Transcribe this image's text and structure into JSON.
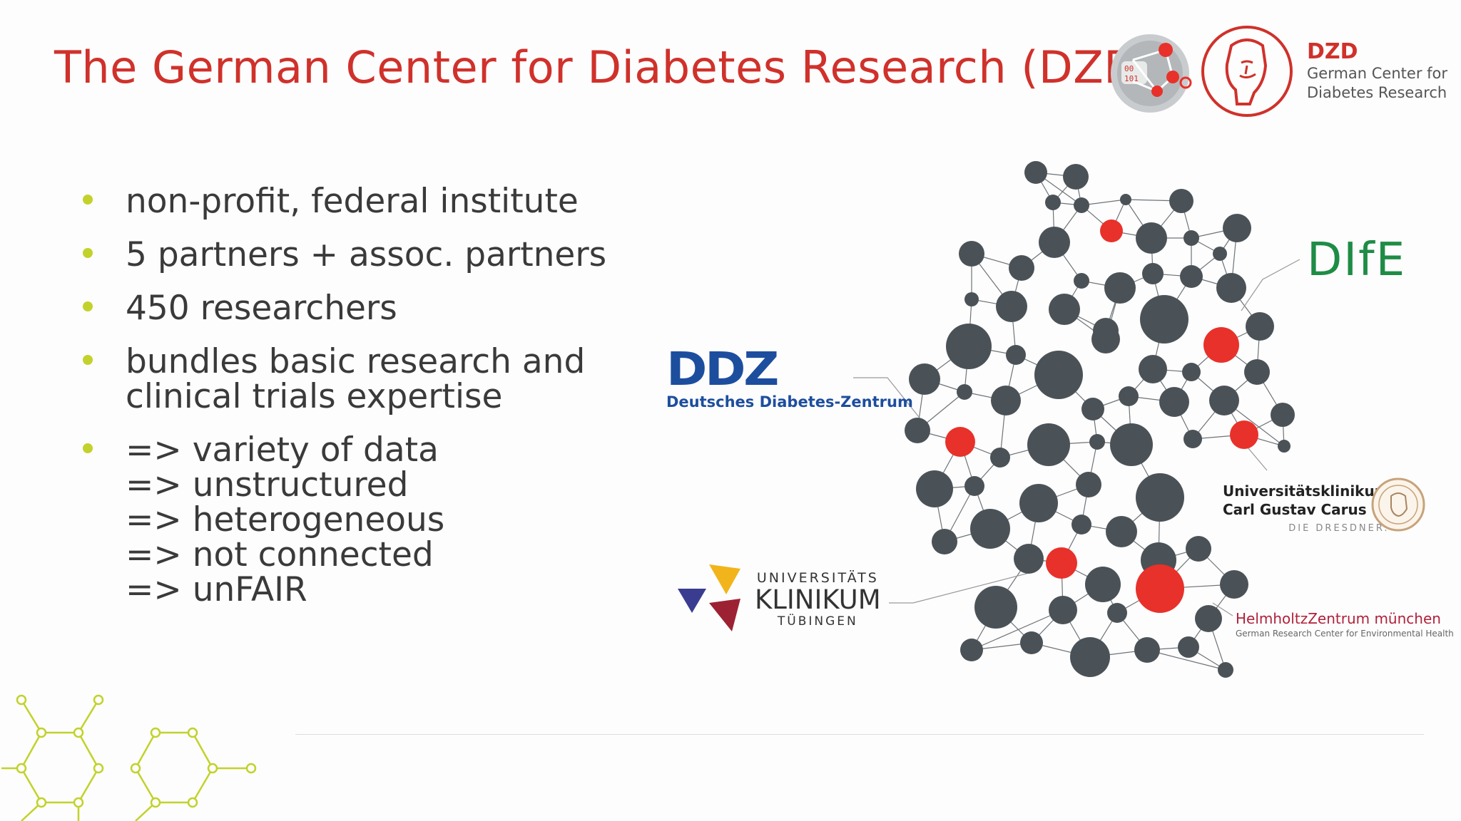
{
  "slide": {
    "title": "The German Center for Diabetes Research (DZD)",
    "bullets": [
      {
        "text": "non-profit, federal institute"
      },
      {
        "text": "5 partners + assoc. partners"
      },
      {
        "text": "450 researchers"
      },
      {
        "text": "bundles basic research and",
        "continuation": "clinical trials expertise"
      },
      {
        "text": "=> variety of data",
        "lines": [
          "=> unstructured",
          "=> heterogeneous",
          "=> not connected",
          "=> unFAIR"
        ]
      }
    ]
  },
  "logos": {
    "dzd": {
      "abbr": "DZD",
      "line1": "German Center for",
      "line2": "Diabetes Research"
    },
    "ddz": {
      "mark": "DDZ",
      "name": "Deutsches Diabetes-Zentrum"
    },
    "dife": {
      "mark": "DIfE"
    },
    "ukt": {
      "line1": "UNIVERSITÄTS",
      "line2": "KLINIKUM",
      "line3": "TÜBINGEN"
    },
    "ukcgc": {
      "line1": "Universitätsklinikum",
      "line2": "Carl Gustav Carus",
      "line3": "DIE DRESDNER."
    },
    "hmgu": {
      "line1": "HelmholtzZentrum münchen",
      "line2": "German Research Center for Environmental Health"
    }
  },
  "colors": {
    "title": "#d0312b",
    "bullet_dot": "#c2d22b",
    "node": "#4b5257",
    "node_highlight": "#e8312a",
    "edge": "#6e7377",
    "hex_deco": "#c2d22b"
  }
}
